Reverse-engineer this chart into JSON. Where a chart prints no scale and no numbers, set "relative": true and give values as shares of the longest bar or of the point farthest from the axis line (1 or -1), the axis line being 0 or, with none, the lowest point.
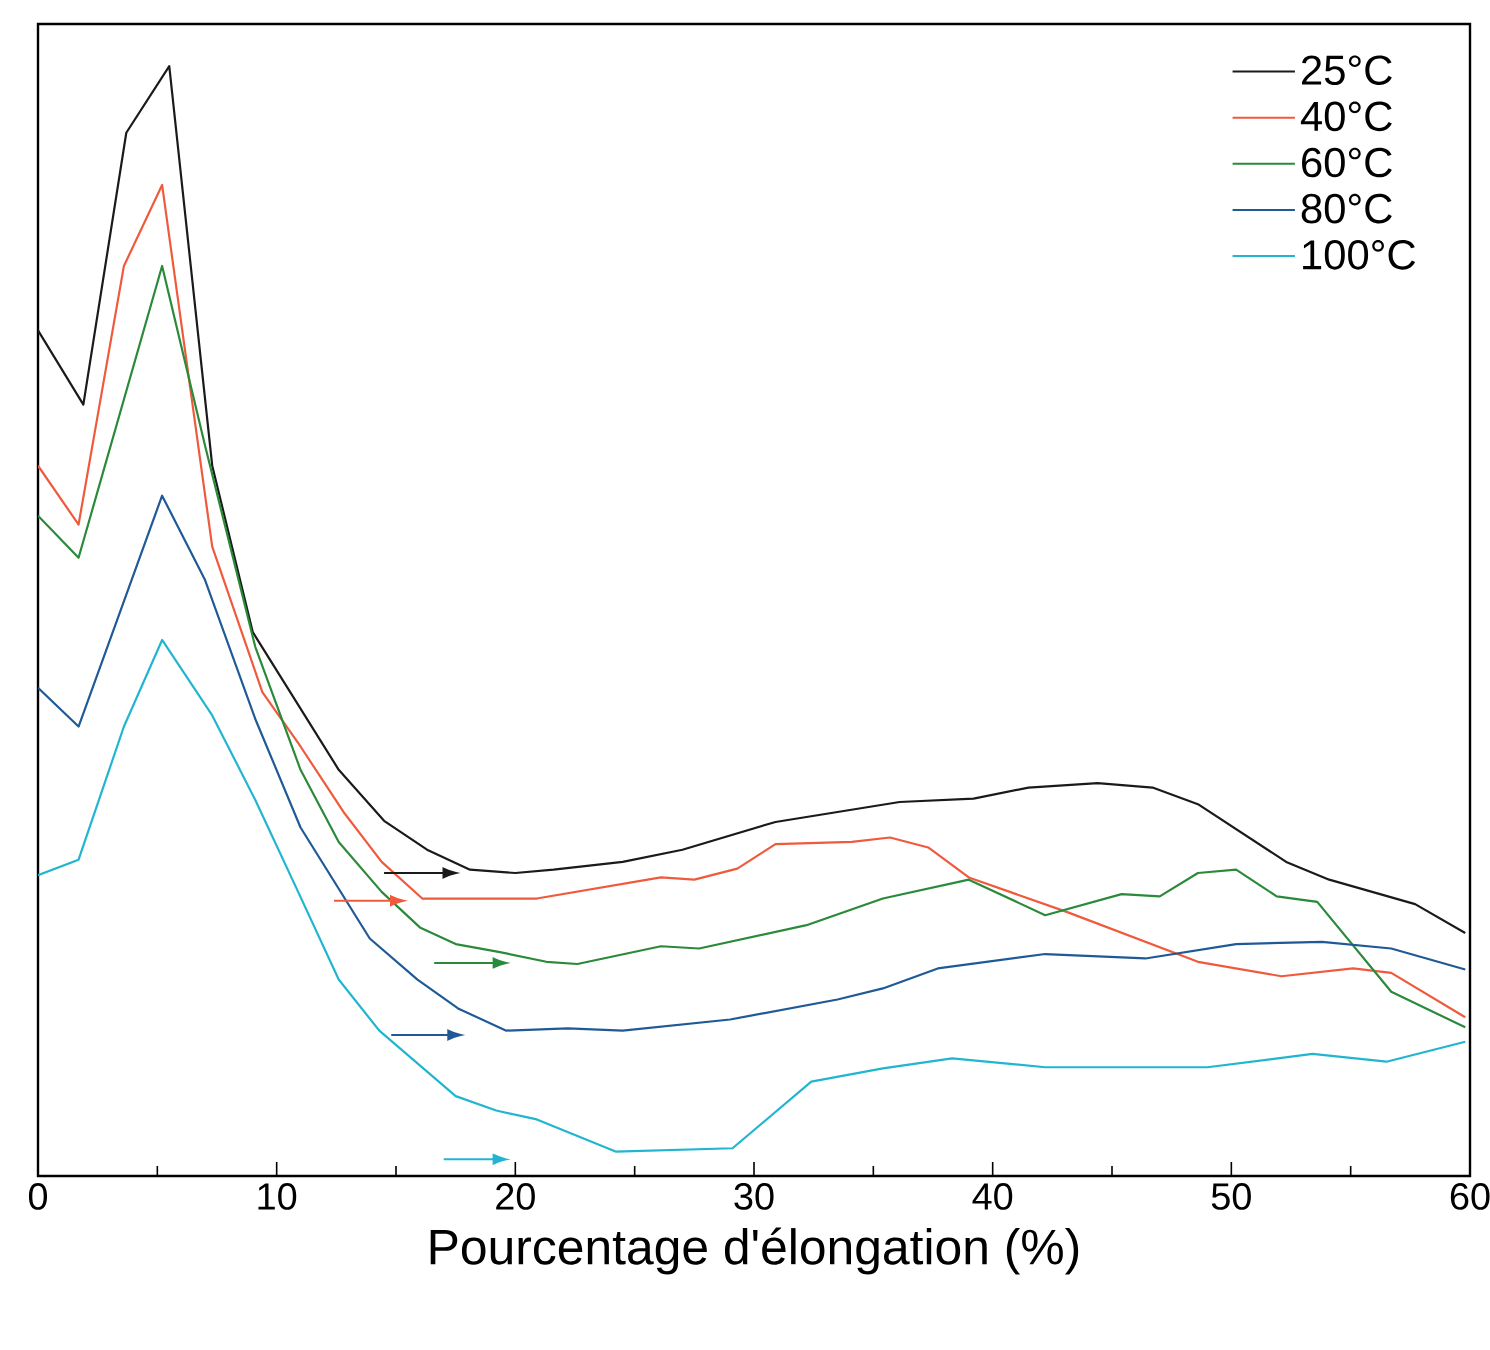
{
  "chart_data": {
    "type": "line",
    "relative": true,
    "xlabel": "Pourcentage d'élongation (%)",
    "xlim": [
      0,
      60
    ],
    "xticks": [
      0,
      10,
      20,
      30,
      40,
      50,
      60
    ],
    "grid": false,
    "legend": "top right",
    "marker": "none",
    "line_style": "solid",
    "series": [
      {
        "name": "25°C",
        "color": "#1a1a1a",
        "x": [
          0,
          1.9,
          3.7,
          5.5,
          7.3,
          9.0,
          12.6,
          14.5,
          16.3,
          18.1,
          20.0,
          21.6,
          24.5,
          27.0,
          30.9,
          33.5,
          36.1,
          39.2,
          41.5,
          44.4,
          46.7,
          48.6,
          52.3,
          54.1,
          57.7,
          59.8
        ],
        "values": [
          0.762,
          0.695,
          0.94,
          1.0,
          0.64,
          0.49,
          0.366,
          0.32,
          0.294,
          0.276,
          0.273,
          0.276,
          0.283,
          0.294,
          0.319,
          0.328,
          0.337,
          0.34,
          0.35,
          0.354,
          0.35,
          0.335,
          0.283,
          0.267,
          0.245,
          0.219
        ]
      },
      {
        "name": "40°C",
        "color": "#f05a3c",
        "x": [
          0,
          1.7,
          3.6,
          5.2,
          7.3,
          9.4,
          11.0,
          12.8,
          14.4,
          16.1,
          20.9,
          26.1,
          27.5,
          29.3,
          30.9,
          34.1,
          35.7,
          37.3,
          39.0,
          43.1,
          48.6,
          52.1,
          55.1,
          56.7,
          59.8
        ],
        "values": [
          0.64,
          0.587,
          0.82,
          0.893,
          0.567,
          0.436,
          0.387,
          0.328,
          0.283,
          0.25,
          0.25,
          0.269,
          0.267,
          0.277,
          0.299,
          0.301,
          0.305,
          0.296,
          0.269,
          0.238,
          0.193,
          0.18,
          0.187,
          0.183,
          0.143
        ]
      },
      {
        "name": "60°C",
        "color": "#2a8a3a",
        "x": [
          0,
          1.7,
          5.2,
          7.0,
          9.1,
          11.0,
          12.6,
          14.4,
          16.0,
          17.5,
          19.3,
          21.3,
          22.6,
          26.1,
          27.7,
          32.2,
          35.4,
          39.0,
          42.2,
          45.4,
          47.0,
          48.6,
          50.2,
          51.9,
          53.6,
          56.7,
          59.8
        ],
        "values": [
          0.595,
          0.557,
          0.82,
          0.658,
          0.477,
          0.366,
          0.301,
          0.256,
          0.224,
          0.209,
          0.202,
          0.193,
          0.191,
          0.207,
          0.205,
          0.226,
          0.25,
          0.267,
          0.235,
          0.254,
          0.252,
          0.273,
          0.276,
          0.252,
          0.247,
          0.166,
          0.134
        ]
      },
      {
        "name": "80°C",
        "color": "#1f5a96",
        "x": [
          0,
          1.7,
          5.2,
          7.0,
          9.1,
          11.0,
          13.9,
          15.9,
          17.6,
          19.6,
          22.2,
          24.5,
          29.0,
          33.5,
          35.4,
          37.7,
          42.2,
          46.4,
          50.2,
          53.8,
          56.7,
          59.8
        ],
        "values": [
          0.44,
          0.405,
          0.613,
          0.537,
          0.412,
          0.314,
          0.214,
          0.177,
          0.151,
          0.131,
          0.133,
          0.131,
          0.141,
          0.159,
          0.169,
          0.187,
          0.2,
          0.196,
          0.209,
          0.211,
          0.205,
          0.186
        ]
      },
      {
        "name": "100°C",
        "color": "#22b5d0",
        "x": [
          0,
          1.7,
          3.6,
          5.2,
          7.3,
          9.1,
          10.9,
          12.6,
          14.3,
          17.5,
          19.2,
          20.9,
          24.2,
          29.1,
          32.4,
          35.4,
          38.3,
          42.2,
          49.0,
          53.4,
          56.5,
          59.8
        ],
        "values": [
          0.271,
          0.285,
          0.405,
          0.483,
          0.415,
          0.339,
          0.256,
          0.177,
          0.131,
          0.072,
          0.059,
          0.051,
          0.022,
          0.025,
          0.085,
          0.097,
          0.106,
          0.098,
          0.098,
          0.11,
          0.103,
          0.121
        ]
      }
    ]
  }
}
